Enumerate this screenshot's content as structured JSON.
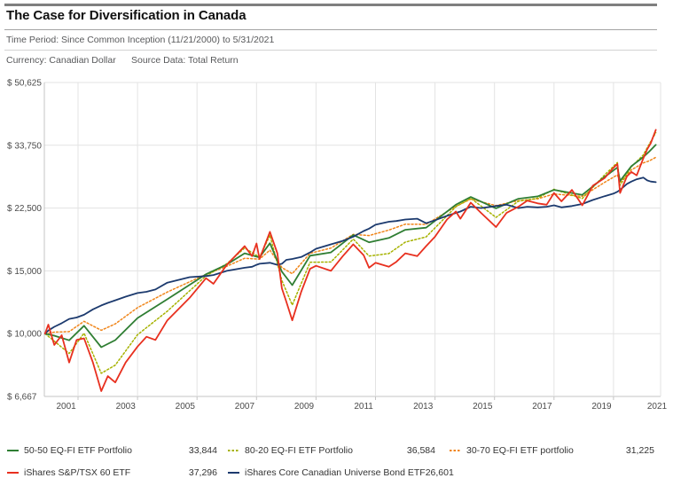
{
  "header": {
    "title": "The Case for Diversification in Canada",
    "time_period": "Time Period: Since Common Inception (11/21/2000) to 5/31/2021",
    "currency_label": "Currency: Canadian Dollar",
    "source_label": "Source Data: Total Return"
  },
  "colors": {
    "accent_bar": "#7f7f7f",
    "grid": "#e3e3e3",
    "axis": "#c4c4c4",
    "tick_text": "#4a4a4a",
    "header_text": "#58595b",
    "legend_text": "#333333"
  },
  "chart_data": {
    "type": "line",
    "title": "The Case for Diversification in Canada",
    "x_axis": {
      "unit": "year",
      "start_date": "11/21/2000",
      "end_date": "5/31/2021",
      "tick_labels": [
        "2001",
        "2003",
        "2005",
        "2007",
        "2009",
        "2011",
        "2013",
        "2015",
        "2017",
        "2019",
        "2021"
      ],
      "gridline_years": [
        2002,
        2004,
        2006,
        2008,
        2010,
        2012,
        2014,
        2016,
        2018,
        2020
      ]
    },
    "y_axis": {
      "scale": "log",
      "currency": "CAD",
      "tick_values": [
        50625,
        33750,
        22500,
        15000,
        10000,
        6667
      ],
      "tick_labels": [
        "$ 50,625",
        "$ 33,750",
        "$ 22,500",
        "$ 15,000",
        "$ 10,000",
        "$ 6,667"
      ],
      "start_value": 10000
    },
    "legend_position": "bottom",
    "series": [
      {
        "name": "50-50 EQ-FI ETF Portfolio",
        "color": "#2f7e33",
        "style": "solid",
        "final_value": 33844,
        "points": [
          [
            2000.89,
            10000
          ],
          [
            2001.2,
            9870
          ],
          [
            2001.7,
            9580
          ],
          [
            2002.2,
            10520
          ],
          [
            2002.78,
            9160
          ],
          [
            2003.25,
            9590
          ],
          [
            2004.0,
            11060
          ],
          [
            2005.0,
            12490
          ],
          [
            2006.3,
            14680
          ],
          [
            2007.0,
            15630
          ],
          [
            2007.6,
            16800
          ],
          [
            2008.1,
            16360
          ],
          [
            2008.45,
            17930
          ],
          [
            2008.85,
            14920
          ],
          [
            2009.2,
            13680
          ],
          [
            2009.8,
            16540
          ],
          [
            2010.5,
            16900
          ],
          [
            2011.25,
            18920
          ],
          [
            2011.78,
            18040
          ],
          [
            2012.45,
            18550
          ],
          [
            2013.0,
            19550
          ],
          [
            2013.7,
            19820
          ],
          [
            2014.7,
            22990
          ],
          [
            2015.2,
            24170
          ],
          [
            2016.05,
            22460
          ],
          [
            2016.8,
            23890
          ],
          [
            2017.45,
            24260
          ],
          [
            2018.0,
            25300
          ],
          [
            2018.95,
            24500
          ],
          [
            2019.7,
            27510
          ],
          [
            2020.13,
            29250
          ],
          [
            2020.22,
            26800
          ],
          [
            2020.6,
            29500
          ],
          [
            2021.0,
            31270
          ],
          [
            2021.2,
            32410
          ],
          [
            2021.42,
            33844
          ]
        ]
      },
      {
        "name": "80-20 EQ-FI ETF Portfolio",
        "color": "#a6b200",
        "style": "dashed",
        "final_value": 36584,
        "points": [
          [
            2000.89,
            10000
          ],
          [
            2001.2,
            9530
          ],
          [
            2001.7,
            8800
          ],
          [
            2002.2,
            10030
          ],
          [
            2002.78,
            7740
          ],
          [
            2003.25,
            8160
          ],
          [
            2004.0,
            9930
          ],
          [
            2005.0,
            11560
          ],
          [
            2006.3,
            14520
          ],
          [
            2007.0,
            15700
          ],
          [
            2007.6,
            17390
          ],
          [
            2008.1,
            16370
          ],
          [
            2008.45,
            18880
          ],
          [
            2008.85,
            14090
          ],
          [
            2009.2,
            12030
          ],
          [
            2009.8,
            15860
          ],
          [
            2010.5,
            15880
          ],
          [
            2011.25,
            18420
          ],
          [
            2011.78,
            16510
          ],
          [
            2012.45,
            16770
          ],
          [
            2013.0,
            18060
          ],
          [
            2013.7,
            18680
          ],
          [
            2014.7,
            22690
          ],
          [
            2015.2,
            23970
          ],
          [
            2016.05,
            21190
          ],
          [
            2016.8,
            23520
          ],
          [
            2017.45,
            23990
          ],
          [
            2018.0,
            25410
          ],
          [
            2018.95,
            23930
          ],
          [
            2019.7,
            27880
          ],
          [
            2020.13,
            30190
          ],
          [
            2020.22,
            26060
          ],
          [
            2020.6,
            29380
          ],
          [
            2021.0,
            31710
          ],
          [
            2021.2,
            34010
          ],
          [
            2021.42,
            36584
          ]
        ]
      },
      {
        "name": "30-70 EQ-FI ETF portfolio",
        "color": "#f08519",
        "style": "dashed",
        "final_value": 31225,
        "points": [
          [
            2000.89,
            10000
          ],
          [
            2001.2,
            10100
          ],
          [
            2001.7,
            10130
          ],
          [
            2002.2,
            10830
          ],
          [
            2002.78,
            10220
          ],
          [
            2003.25,
            10650
          ],
          [
            2004.0,
            11830
          ],
          [
            2005.0,
            13080
          ],
          [
            2006.3,
            14670
          ],
          [
            2007.0,
            15450
          ],
          [
            2007.6,
            16270
          ],
          [
            2008.1,
            16180
          ],
          [
            2008.45,
            17150
          ],
          [
            2008.85,
            15320
          ],
          [
            2009.2,
            14730
          ],
          [
            2009.8,
            16800
          ],
          [
            2010.5,
            17380
          ],
          [
            2011.25,
            18980
          ],
          [
            2011.78,
            18840
          ],
          [
            2012.45,
            19520
          ],
          [
            2013.0,
            20270
          ],
          [
            2013.7,
            20250
          ],
          [
            2014.7,
            22740
          ],
          [
            2015.2,
            23840
          ],
          [
            2016.05,
            22860
          ],
          [
            2016.8,
            23610
          ],
          [
            2017.45,
            23880
          ],
          [
            2018.0,
            24640
          ],
          [
            2018.95,
            24260
          ],
          [
            2019.7,
            26560
          ],
          [
            2020.13,
            27880
          ],
          [
            2020.22,
            26580
          ],
          [
            2020.6,
            28780
          ],
          [
            2021.0,
            30120
          ],
          [
            2021.2,
            30510
          ],
          [
            2021.42,
            31225
          ]
        ]
      },
      {
        "name": "iShares S&P/TSX 60 ETF",
        "color": "#e8301f",
        "style": "solid",
        "final_value": 37296,
        "points": [
          [
            2000.89,
            10000
          ],
          [
            2001.0,
            10600
          ],
          [
            2001.2,
            9300
          ],
          [
            2001.45,
            9900
          ],
          [
            2001.7,
            8300
          ],
          [
            2001.95,
            9600
          ],
          [
            2002.2,
            9700
          ],
          [
            2002.5,
            8300
          ],
          [
            2002.78,
            6900
          ],
          [
            2003.0,
            7600
          ],
          [
            2003.25,
            7300
          ],
          [
            2003.6,
            8300
          ],
          [
            2004.0,
            9200
          ],
          [
            2004.3,
            9800
          ],
          [
            2004.6,
            9600
          ],
          [
            2005.0,
            10900
          ],
          [
            2005.75,
            12600
          ],
          [
            2006.3,
            14300
          ],
          [
            2006.55,
            13800
          ],
          [
            2007.0,
            15600
          ],
          [
            2007.6,
            17600
          ],
          [
            2007.85,
            16500
          ],
          [
            2008.0,
            17900
          ],
          [
            2008.1,
            16200
          ],
          [
            2008.45,
            19300
          ],
          [
            2008.7,
            16800
          ],
          [
            2008.85,
            13400
          ],
          [
            2009.0,
            12300
          ],
          [
            2009.2,
            10900
          ],
          [
            2009.5,
            13100
          ],
          [
            2009.8,
            15200
          ],
          [
            2010.0,
            15500
          ],
          [
            2010.5,
            15000
          ],
          [
            2010.9,
            16500
          ],
          [
            2011.25,
            17800
          ],
          [
            2011.6,
            16600
          ],
          [
            2011.78,
            15300
          ],
          [
            2012.0,
            15800
          ],
          [
            2012.45,
            15400
          ],
          [
            2012.7,
            15900
          ],
          [
            2013.0,
            16800
          ],
          [
            2013.4,
            16500
          ],
          [
            2013.7,
            17600
          ],
          [
            2014.0,
            18700
          ],
          [
            2014.4,
            20900
          ],
          [
            2014.7,
            22000
          ],
          [
            2014.85,
            21000
          ],
          [
            2015.2,
            23300
          ],
          [
            2015.55,
            21800
          ],
          [
            2016.05,
            19900
          ],
          [
            2016.4,
            21800
          ],
          [
            2016.8,
            22700
          ],
          [
            2017.1,
            23600
          ],
          [
            2017.45,
            23200
          ],
          [
            2017.75,
            23000
          ],
          [
            2018.0,
            24800
          ],
          [
            2018.25,
            23500
          ],
          [
            2018.6,
            25300
          ],
          [
            2018.95,
            22900
          ],
          [
            2019.3,
            26000
          ],
          [
            2019.7,
            27300
          ],
          [
            2020.0,
            29200
          ],
          [
            2020.13,
            29900
          ],
          [
            2020.22,
            24800
          ],
          [
            2020.45,
            27600
          ],
          [
            2020.6,
            28400
          ],
          [
            2020.78,
            27800
          ],
          [
            2021.0,
            31000
          ],
          [
            2021.13,
            32900
          ],
          [
            2021.25,
            34200
          ],
          [
            2021.42,
            37296
          ]
        ]
      },
      {
        "name": "iShares Core Canadian Universe Bond ETF",
        "color": "#1c3a6e",
        "style": "solid",
        "final_value": 26601,
        "points": [
          [
            2000.89,
            10000
          ],
          [
            2001.0,
            10200
          ],
          [
            2001.2,
            10450
          ],
          [
            2001.45,
            10700
          ],
          [
            2001.7,
            11000
          ],
          [
            2001.95,
            11100
          ],
          [
            2002.2,
            11300
          ],
          [
            2002.5,
            11700
          ],
          [
            2002.78,
            12000
          ],
          [
            2003.0,
            12200
          ],
          [
            2003.25,
            12400
          ],
          [
            2003.6,
            12700
          ],
          [
            2004.0,
            13000
          ],
          [
            2004.3,
            13100
          ],
          [
            2004.6,
            13300
          ],
          [
            2005.0,
            13900
          ],
          [
            2005.75,
            14400
          ],
          [
            2006.3,
            14500
          ],
          [
            2006.55,
            14600
          ],
          [
            2007.0,
            15000
          ],
          [
            2007.6,
            15300
          ],
          [
            2007.85,
            15400
          ],
          [
            2008.0,
            15600
          ],
          [
            2008.1,
            15700
          ],
          [
            2008.45,
            15800
          ],
          [
            2008.7,
            15600
          ],
          [
            2008.85,
            15700
          ],
          [
            2009.0,
            16100
          ],
          [
            2009.2,
            16200
          ],
          [
            2009.5,
            16400
          ],
          [
            2009.8,
            16900
          ],
          [
            2010.0,
            17300
          ],
          [
            2010.5,
            17800
          ],
          [
            2010.9,
            18200
          ],
          [
            2011.25,
            18700
          ],
          [
            2011.6,
            19400
          ],
          [
            2011.78,
            19700
          ],
          [
            2012.0,
            20200
          ],
          [
            2012.45,
            20600
          ],
          [
            2012.7,
            20700
          ],
          [
            2013.0,
            20900
          ],
          [
            2013.4,
            21000
          ],
          [
            2013.7,
            20400
          ],
          [
            2014.0,
            20800
          ],
          [
            2014.4,
            21400
          ],
          [
            2014.7,
            21800
          ],
          [
            2014.85,
            22000
          ],
          [
            2015.2,
            22700
          ],
          [
            2015.55,
            22500
          ],
          [
            2016.05,
            22800
          ],
          [
            2016.4,
            23000
          ],
          [
            2016.8,
            22500
          ],
          [
            2017.1,
            22700
          ],
          [
            2017.45,
            22600
          ],
          [
            2017.75,
            22700
          ],
          [
            2018.0,
            22900
          ],
          [
            2018.25,
            22600
          ],
          [
            2018.6,
            22800
          ],
          [
            2018.95,
            23100
          ],
          [
            2019.3,
            23700
          ],
          [
            2019.7,
            24300
          ],
          [
            2020.0,
            24700
          ],
          [
            2020.13,
            25000
          ],
          [
            2020.22,
            25300
          ],
          [
            2020.45,
            26300
          ],
          [
            2020.6,
            26700
          ],
          [
            2020.78,
            27100
          ],
          [
            2021.0,
            27400
          ],
          [
            2021.13,
            26900
          ],
          [
            2021.25,
            26700
          ],
          [
            2021.42,
            26601
          ]
        ]
      }
    ]
  },
  "legend": {
    "display_values": [
      "33,844",
      "36,584",
      "31,225",
      "37,296",
      "26,601"
    ]
  }
}
